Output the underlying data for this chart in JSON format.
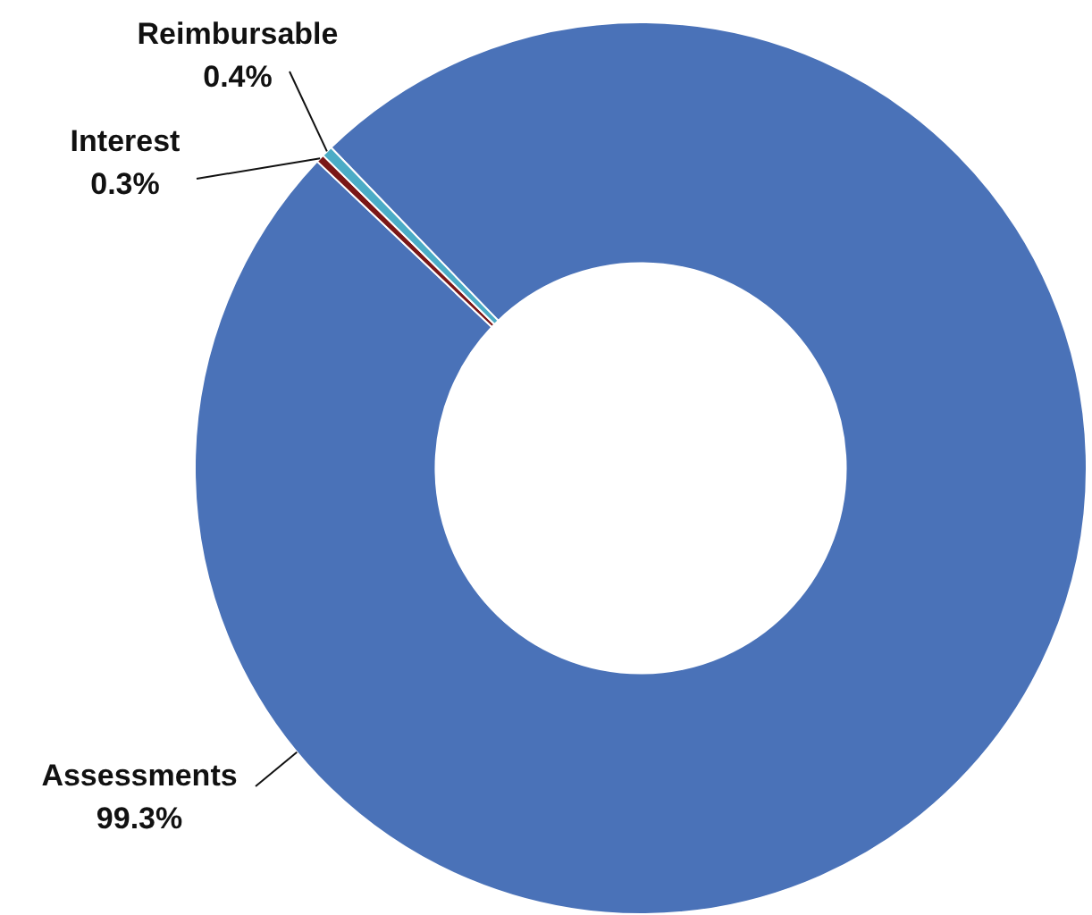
{
  "chart_data": {
    "type": "donut",
    "categories": [
      "Assessments",
      "Interest",
      "Reimbursable"
    ],
    "values": [
      99.3,
      0.3,
      0.4
    ],
    "value_labels": [
      "99.3%",
      "0.3%",
      "0.4%"
    ],
    "colors": [
      "#4a72b8",
      "#7a1616",
      "#4bacc6"
    ],
    "legend": false
  }
}
